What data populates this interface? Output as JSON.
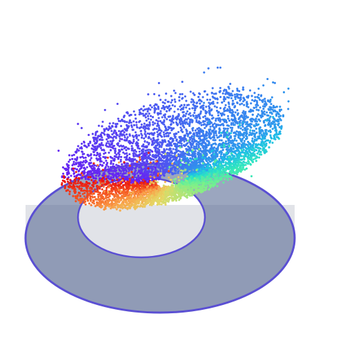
{
  "figure": {
    "type": "3d-scatter-point-cloud",
    "surface": "twisted-annular-band",
    "colormap": "rainbow",
    "colormap_stops": [
      "#6a1ff2",
      "#3b7cf0",
      "#1ebbe8",
      "#2fe6c0",
      "#7cf08a",
      "#e4d865",
      "#f9a24a",
      "#f4511e",
      "#e81010"
    ],
    "point_count": 7000,
    "noise_fraction": 0.06,
    "base_annulus": {
      "fill_color": "#5d6f97",
      "fill_opacity": 0.62,
      "edge_color": "#5a4fd3",
      "wall_color": "#c9ccd6"
    },
    "background": "#ffffff"
  }
}
